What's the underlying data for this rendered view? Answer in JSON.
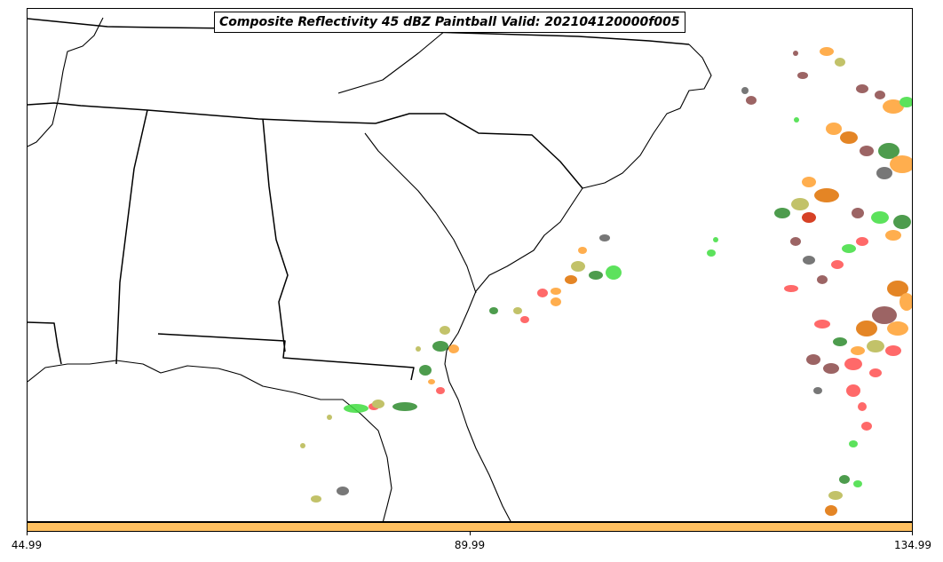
{
  "title": "Composite Reflectivity 45 dBZ Paintball Valid: 202104120000f005",
  "colorbar": {
    "color": "#ffc060",
    "ticks": [
      "44.99",
      "89.99",
      "134.99"
    ]
  },
  "map": {
    "region": "Southeastern United States and western Atlantic",
    "line_color": "#000000",
    "paintball_colors": [
      "#ff5050",
      "#ffa030",
      "#40dd40",
      "#2e8b2e",
      "#b8b850",
      "#8b4a4a",
      "#606060",
      "#e07000",
      "#d02000"
    ]
  }
}
